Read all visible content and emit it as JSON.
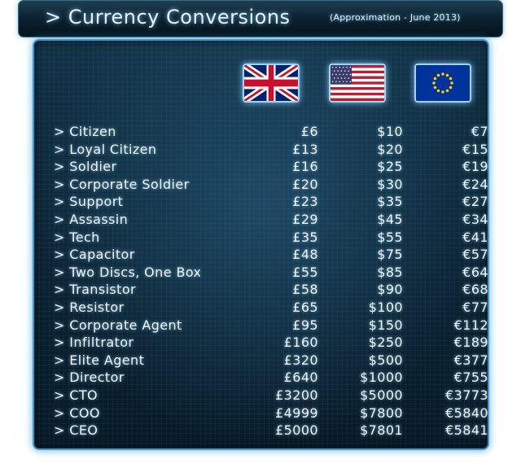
{
  "title": "> Currency Conversions",
  "subtitle": "(Approximation - June 2013)",
  "columns": [
    {
      "currency": "GBP",
      "icon": "uk-flag-icon"
    },
    {
      "currency": "USD",
      "icon": "us-flag-icon"
    },
    {
      "currency": "EUR",
      "icon": "eu-flag-icon"
    }
  ],
  "rows": [
    {
      "name": "> Citizen",
      "gbp": "£6",
      "usd": "$10",
      "eur": "€7"
    },
    {
      "name": "> Loyal Citizen",
      "gbp": "£13",
      "usd": "$20",
      "eur": "€15"
    },
    {
      "name": "> Soldier",
      "gbp": "£16",
      "usd": "$25",
      "eur": "€19"
    },
    {
      "name": "> Corporate Soldier",
      "gbp": "£20",
      "usd": "$30",
      "eur": "€24"
    },
    {
      "name": "> Support",
      "gbp": "£23",
      "usd": "$35",
      "eur": "€27"
    },
    {
      "name": "> Assassin",
      "gbp": "£29",
      "usd": "$45",
      "eur": "€34"
    },
    {
      "name": "> Tech",
      "gbp": "£35",
      "usd": "$55",
      "eur": "€41"
    },
    {
      "name": "> Capacitor",
      "gbp": "£48",
      "usd": "$75",
      "eur": "€57"
    },
    {
      "name": "> Two Discs, One Box",
      "gbp": "£55",
      "usd": "$85",
      "eur": "€64"
    },
    {
      "name": "> Transistor",
      "gbp": "£58",
      "usd": "$90",
      "eur": "€68"
    },
    {
      "name": "> Resistor",
      "gbp": "£65",
      "usd": "$100",
      "eur": "€77"
    },
    {
      "name": "> Corporate Agent",
      "gbp": "£95",
      "usd": "$150",
      "eur": "€112"
    },
    {
      "name": "> Infiltrator",
      "gbp": "£160",
      "usd": "$250",
      "eur": "€189"
    },
    {
      "name": "> Elite Agent",
      "gbp": "£320",
      "usd": "$500",
      "eur": "€377"
    },
    {
      "name": "> Director",
      "gbp": "£640",
      "usd": "$1000",
      "eur": "€755"
    },
    {
      "name": "> CTO",
      "gbp": "£3200",
      "usd": "$5000",
      "eur": "€3773"
    },
    {
      "name": "> COO",
      "gbp": "£4999",
      "usd": "$7800",
      "eur": "€5840"
    },
    {
      "name": "> CEO",
      "gbp": "£5000",
      "usd": "$7801",
      "eur": "€5841"
    }
  ]
}
